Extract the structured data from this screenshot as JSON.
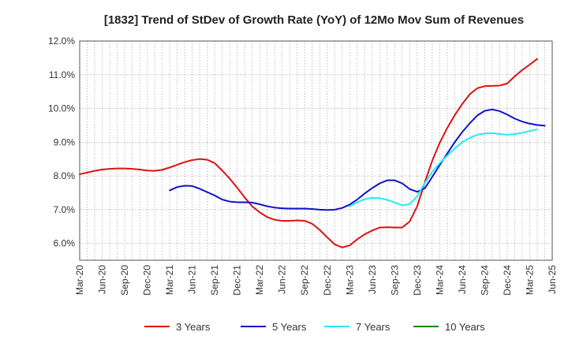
{
  "chart_data": {
    "type": "line",
    "title": "[1832]  Trend of StDev of Growth Rate (YoY) of 12Mo Mov Sum of Revenues",
    "xlabel": "",
    "ylabel": "",
    "ylim": [
      5.5,
      12.0
    ],
    "yticks": [
      6.0,
      7.0,
      8.0,
      9.0,
      10.0,
      11.0,
      12.0
    ],
    "ytick_labels": [
      "6.0%",
      "7.0%",
      "8.0%",
      "9.0%",
      "10.0%",
      "11.0%",
      "12.0%"
    ],
    "x_start": "Mar-20",
    "x_categories": [
      "Mar-20",
      "Jun-20",
      "Sep-20",
      "Dec-20",
      "Mar-21",
      "Jun-21",
      "Sep-21",
      "Dec-21",
      "Mar-22",
      "Jun-22",
      "Sep-22",
      "Dec-22",
      "Mar-23",
      "Jun-23",
      "Sep-23",
      "Dec-23",
      "Mar-24",
      "Jun-24",
      "Sep-24",
      "Dec-24",
      "Mar-25",
      "Jun-25"
    ],
    "grid": true,
    "legend_position": "bottom",
    "series": [
      {
        "name": "3 Years",
        "color": "#dd1111",
        "start_index": 0,
        "values": [
          8.05,
          8.1,
          8.15,
          8.19,
          8.21,
          8.22,
          8.22,
          8.21,
          8.19,
          8.16,
          8.15,
          8.18,
          8.25,
          8.33,
          8.41,
          8.47,
          8.5,
          8.48,
          8.38,
          8.16,
          7.92,
          7.65,
          7.36,
          7.1,
          6.92,
          6.78,
          6.7,
          6.67,
          6.67,
          6.68,
          6.67,
          6.58,
          6.4,
          6.18,
          5.97,
          5.88,
          5.94,
          6.12,
          6.27,
          6.38,
          6.47,
          6.48,
          6.47,
          6.47,
          6.65,
          7.1,
          7.8,
          8.45,
          8.98,
          9.42,
          9.8,
          10.13,
          10.42,
          10.6,
          10.66,
          10.67,
          10.68,
          10.74,
          10.95,
          11.14,
          11.3,
          11.47
        ]
      },
      {
        "name": "5 Years",
        "color": "#1111cc",
        "start_index": 12,
        "values": [
          7.57,
          7.67,
          7.71,
          7.7,
          7.62,
          7.52,
          7.42,
          7.3,
          7.24,
          7.22,
          7.22,
          7.21,
          7.16,
          7.1,
          7.06,
          7.04,
          7.03,
          7.03,
          7.03,
          7.02,
          7.0,
          6.99,
          7.0,
          7.05,
          7.15,
          7.3,
          7.48,
          7.64,
          7.78,
          7.87,
          7.87,
          7.78,
          7.61,
          7.53,
          7.63,
          7.97,
          8.32,
          8.66,
          9.0,
          9.3,
          9.56,
          9.79,
          9.93,
          9.97,
          9.92,
          9.82,
          9.7,
          9.61,
          9.55,
          9.51,
          9.49
        ]
      },
      {
        "name": "7 Years",
        "color": "#22eeee",
        "start_index": 36,
        "values": [
          7.1,
          7.22,
          7.31,
          7.35,
          7.34,
          7.29,
          7.21,
          7.13,
          7.16,
          7.4,
          7.78,
          8.12,
          8.38,
          8.6,
          8.81,
          9.0,
          9.13,
          9.22,
          9.26,
          9.27,
          9.24,
          9.22,
          9.24,
          9.28,
          9.33,
          9.38
        ]
      },
      {
        "name": "10 Years",
        "color": "#118811",
        "start_index": 0,
        "values": []
      }
    ]
  }
}
